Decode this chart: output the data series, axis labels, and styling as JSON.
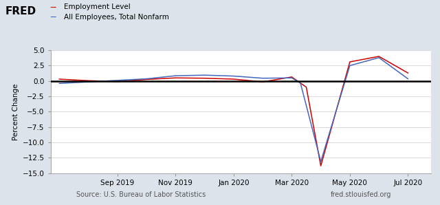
{
  "legend": [
    "Employment Level",
    "All Employees, Total Nonfarm"
  ],
  "line_colors": [
    "#cc0000",
    "#4466bb"
  ],
  "ylabel": "Percent Change",
  "source_left": "Source: U.S. Bureau of Labor Statistics",
  "source_right": "fred.stlouisfed.org",
  "ylim": [
    -15.0,
    5.0
  ],
  "xtick_labels": [
    "Sep 2019",
    "Nov 2019",
    "Jan 2020",
    "Mar 2020",
    "May 2020",
    "Jul 2020"
  ],
  "background_color": "#dce3ea",
  "plot_background": "#ffffff",
  "zero_line_color": "#000000",
  "grid_color": "#cccccc",
  "red_x": [
    0,
    1,
    2,
    3,
    4,
    5,
    6,
    7,
    8,
    8.5,
    9,
    10,
    11,
    12
  ],
  "red_y": [
    0.3,
    0.05,
    -0.1,
    0.25,
    0.5,
    0.45,
    0.3,
    -0.15,
    0.65,
    -1.0,
    -13.8,
    3.1,
    4.0,
    1.3
  ],
  "blue_x": [
    0,
    1,
    2,
    3,
    4,
    5,
    6,
    7,
    8,
    8.3,
    9,
    10,
    11,
    12
  ],
  "blue_y": [
    -0.4,
    -0.15,
    0.1,
    0.35,
    0.85,
    0.95,
    0.8,
    0.45,
    0.5,
    -0.35,
    -13.1,
    2.5,
    3.8,
    0.35
  ],
  "xtick_positions": [
    2,
    4,
    6,
    8,
    10,
    12
  ],
  "xlim": [
    -0.3,
    12.8
  ],
  "fred_color": "#000000",
  "legend_dash_color_1": "#cc0000",
  "legend_dash_color_2": "#4466bb"
}
